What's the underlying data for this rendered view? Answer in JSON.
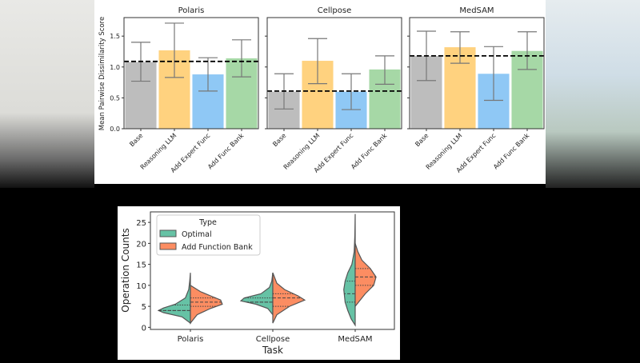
{
  "chart_data": [
    {
      "type": "bar",
      "ylabel": "Mean Pairwise Dissimilarity Score",
      "ylim": [
        0,
        1.8
      ],
      "yticks": [
        "0.0",
        "0.5",
        "1.0",
        "1.5"
      ],
      "categories": [
        "Base",
        "Reasoning LLM",
        "Add Expert Func",
        "Add Func Bank"
      ],
      "colors": [
        "#bdbdbd",
        "#ffd27f",
        "#8fc8f5",
        "#a6d8a6"
      ],
      "panels": [
        {
          "title": "Polaris",
          "values": [
            1.08,
            1.27,
            0.88,
            1.14
          ],
          "err_low": [
            0.77,
            0.83,
            0.61,
            0.84
          ],
          "err_high": [
            1.4,
            1.71,
            1.15,
            1.44
          ],
          "baseline": 1.09
        },
        {
          "title": "Cellpose",
          "values": [
            0.6,
            1.1,
            0.6,
            0.96
          ],
          "err_low": [
            0.32,
            0.73,
            0.31,
            0.72
          ],
          "err_high": [
            0.89,
            1.46,
            0.89,
            1.18
          ],
          "baseline": 0.61
        },
        {
          "title": "MedSAM",
          "values": [
            1.18,
            1.32,
            0.89,
            1.26
          ],
          "err_low": [
            0.78,
            1.06,
            0.46,
            0.96
          ],
          "err_high": [
            1.58,
            1.57,
            1.33,
            1.57
          ],
          "baseline": 1.18
        }
      ]
    },
    {
      "type": "violin",
      "xlabel": "Task",
      "ylabel": "Operation Counts",
      "ylim": [
        -0.5,
        27.5
      ],
      "yticks": [
        "0",
        "5",
        "10",
        "15",
        "20",
        "25"
      ],
      "categories": [
        "Polaris",
        "Cellpose",
        "MedSAM"
      ],
      "legend": {
        "title": "Type",
        "placement": "top-left",
        "entries": [
          "Optimal",
          "Add Function Bank"
        ]
      },
      "colors": [
        "#66c2a5",
        "#fc8d62"
      ],
      "series": [
        {
          "name": "Optimal",
          "groups": [
            {
              "density": [
                [
                  1,
                  0
                ],
                [
                  2.5,
                  0.25
                ],
                [
                  3.5,
                  0.8
                ],
                [
                  4,
                  0.95
                ],
                [
                  4.6,
                  0.8
                ],
                [
                  5.5,
                  0.45
                ],
                [
                  7,
                  0.15
                ],
                [
                  9,
                  0.05
                ],
                [
                  11,
                  0.02
                ],
                [
                  13,
                  0
                ]
              ],
              "quartiles": [
                4,
                4,
                5.3
              ]
            },
            {
              "density": [
                [
                  3,
                  0
                ],
                [
                  4.5,
                  0.15
                ],
                [
                  5.5,
                  0.5
                ],
                [
                  6.3,
                  0.95
                ],
                [
                  7,
                  0.85
                ],
                [
                  8,
                  0.35
                ],
                [
                  9.5,
                  0.1
                ],
                [
                  11,
                  0.03
                ],
                [
                  13,
                  0
                ]
              ],
              "quartiles": [
                6,
                6,
                7
              ]
            },
            {
              "density": [
                [
                  0.5,
                  0
                ],
                [
                  2,
                  0.12
                ],
                [
                  4,
                  0.22
                ],
                [
                  6,
                  0.3
                ],
                [
                  9,
                  0.34
                ],
                [
                  11,
                  0.3
                ],
                [
                  13,
                  0.22
                ],
                [
                  15,
                  0.1
                ],
                [
                  18,
                  0.03
                ],
                [
                  22,
                  0.01
                ],
                [
                  27,
                  0
                ]
              ],
              "quartiles": [
                6,
                8,
                11
              ]
            }
          ]
        },
        {
          "name": "Add Function Bank",
          "groups": [
            {
              "density": [
                [
                  1,
                  0
                ],
                [
                  3,
                  0.2
                ],
                [
                  4.5,
                  0.6
                ],
                [
                  5.5,
                  0.95
                ],
                [
                  6.5,
                  0.9
                ],
                [
                  7.5,
                  0.6
                ],
                [
                  8.5,
                  0.3
                ],
                [
                  10,
                  0
                ]
              ],
              "quartiles": [
                5,
                6,
                7
              ]
            },
            {
              "density": [
                [
                  1,
                  0
                ],
                [
                  3,
                  0.12
                ],
                [
                  5,
                  0.5
                ],
                [
                  6.5,
                  0.95
                ],
                [
                  7.5,
                  0.75
                ],
                [
                  9,
                  0.35
                ],
                [
                  10.5,
                  0.12
                ],
                [
                  13,
                  0
                ]
              ],
              "quartiles": [
                5,
                7,
                8
              ]
            },
            {
              "density": [
                [
                  5,
                  0
                ],
                [
                  8,
                  0.3
                ],
                [
                  10,
                  0.55
                ],
                [
                  12,
                  0.62
                ],
                [
                  14,
                  0.45
                ],
                [
                  16,
                  0.2
                ],
                [
                  18,
                  0.08
                ],
                [
                  20,
                  0
                ]
              ],
              "quartiles": [
                10,
                12,
                14
              ]
            }
          ]
        }
      ]
    }
  ]
}
